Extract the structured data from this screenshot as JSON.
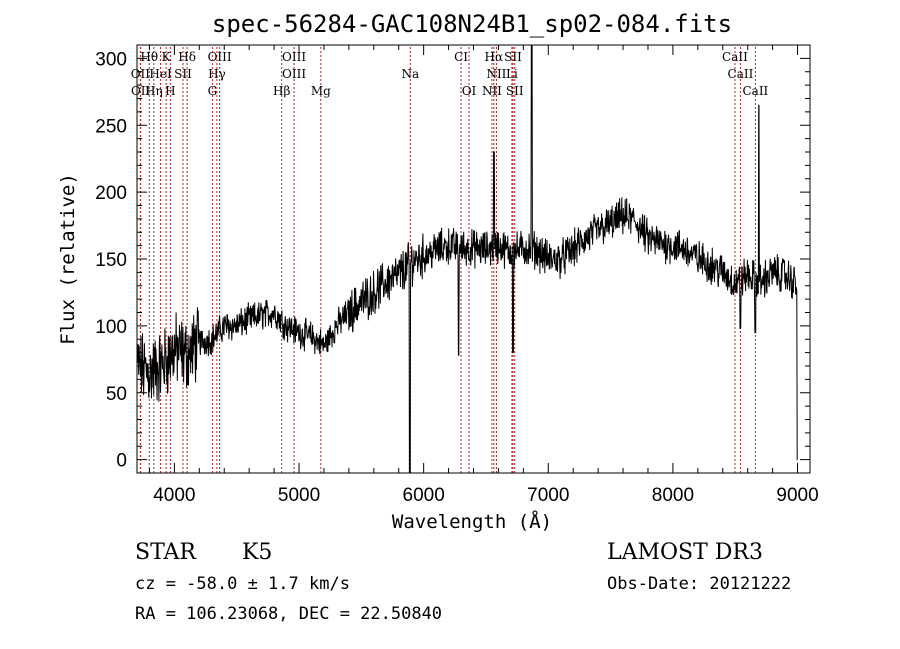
{
  "chart_data": {
    "type": "line",
    "title": "spec-56284-GAC108N24B1_sp02-084.fits",
    "xlabel": "Wavelength (Å)",
    "ylabel": "Flux (relative)",
    "xlim": [
      3700,
      9100
    ],
    "ylim": [
      -10,
      310
    ],
    "x_ticks": [
      4000,
      5000,
      6000,
      7000,
      8000,
      9000
    ],
    "y_ticks": [
      0,
      50,
      100,
      150,
      200,
      250,
      300
    ],
    "series": [
      {
        "name": "spectrum",
        "continuum": [
          [
            3700,
            70
          ],
          [
            3800,
            65
          ],
          [
            3900,
            70
          ],
          [
            4000,
            82
          ],
          [
            4100,
            78
          ],
          [
            4200,
            88
          ],
          [
            4300,
            90
          ],
          [
            4400,
            100
          ],
          [
            4500,
            100
          ],
          [
            4600,
            105
          ],
          [
            4700,
            108
          ],
          [
            4800,
            110
          ],
          [
            4900,
            100
          ],
          [
            5000,
            95
          ],
          [
            5100,
            92
          ],
          [
            5200,
            85
          ],
          [
            5300,
            100
          ],
          [
            5400,
            110
          ],
          [
            5500,
            118
          ],
          [
            5600,
            125
          ],
          [
            5700,
            133
          ],
          [
            5800,
            138
          ],
          [
            5900,
            148
          ],
          [
            6000,
            152
          ],
          [
            6100,
            157
          ],
          [
            6200,
            160
          ],
          [
            6300,
            158
          ],
          [
            6400,
            158
          ],
          [
            6500,
            157
          ],
          [
            6600,
            160
          ],
          [
            6700,
            155
          ],
          [
            6800,
            158
          ],
          [
            6900,
            157
          ],
          [
            7000,
            150
          ],
          [
            7100,
            150
          ],
          [
            7200,
            157
          ],
          [
            7300,
            165
          ],
          [
            7400,
            172
          ],
          [
            7500,
            176
          ],
          [
            7600,
            182
          ],
          [
            7700,
            178
          ],
          [
            7800,
            165
          ],
          [
            7900,
            162
          ],
          [
            8000,
            160
          ],
          [
            8100,
            157
          ],
          [
            8200,
            150
          ],
          [
            8300,
            146
          ],
          [
            8400,
            140
          ],
          [
            8500,
            132
          ],
          [
            8600,
            138
          ],
          [
            8700,
            132
          ],
          [
            8800,
            140
          ],
          [
            8900,
            138
          ],
          [
            9000,
            130
          ]
        ],
        "features": [
          {
            "wavelength": 5890,
            "flux": -10,
            "width": 6
          },
          {
            "wavelength": 6280,
            "flux": 78,
            "width": 5
          },
          {
            "wavelength": 6563,
            "flux": 230,
            "width": 6
          },
          {
            "wavelength": 6717,
            "flux": 80,
            "width": 4
          },
          {
            "wavelength": 6867,
            "flux": 310,
            "width": 6
          },
          {
            "wavelength": 8542,
            "flux": 98,
            "width": 6
          },
          {
            "wavelength": 8662,
            "flux": 95,
            "width": 6
          },
          {
            "wavelength": 8690,
            "flux": 265,
            "width": 4
          },
          {
            "wavelength": 9000,
            "flux": 0,
            "width": 8
          }
        ]
      }
    ],
    "spectral_lines": [
      {
        "label": "Hθ",
        "wavelength": 3798,
        "row": 0
      },
      {
        "label": "K",
        "wavelength": 3934,
        "row": 0
      },
      {
        "label": "Hδ",
        "wavelength": 4102,
        "row": 0
      },
      {
        "label": "OIII",
        "wavelength": 4363,
        "row": 0
      },
      {
        "label": "OIII",
        "wavelength": 4960,
        "row": 0
      },
      {
        "label": "CI",
        "wavelength": 6300,
        "row": 0
      },
      {
        "label": "Hα",
        "wavelength": 6563,
        "row": 0
      },
      {
        "label": "SII",
        "wavelength": 6717,
        "row": 0
      },
      {
        "label": "CaII",
        "wavelength": 8498,
        "row": 0
      },
      {
        "label": "OII",
        "wavelength": 3727,
        "row": 1
      },
      {
        "label": "HeI",
        "wavelength": 3889,
        "row": 1
      },
      {
        "label": "SII",
        "wavelength": 4069,
        "row": 1
      },
      {
        "label": "Hγ",
        "wavelength": 4341,
        "row": 1
      },
      {
        "label": "OIII",
        "wavelength": 4960,
        "row": 1
      },
      {
        "label": "Na",
        "wavelength": 5893,
        "row": 1
      },
      {
        "label": "NII",
        "wavelength": 6584,
        "row": 1
      },
      {
        "label": "Li",
        "wavelength": 6708,
        "row": 1
      },
      {
        "label": "CaII",
        "wavelength": 8542,
        "row": 1
      },
      {
        "label": "OII",
        "wavelength": 3729,
        "row": 2
      },
      {
        "label": "Hη",
        "wavelength": 3835,
        "row": 2
      },
      {
        "label": "H",
        "wavelength": 3968,
        "row": 2
      },
      {
        "label": "G",
        "wavelength": 4305,
        "row": 2
      },
      {
        "label": "Hβ",
        "wavelength": 4861,
        "row": 2
      },
      {
        "label": "Mg",
        "wavelength": 5175,
        "row": 2
      },
      {
        "label": "OI",
        "wavelength": 6364,
        "row": 2
      },
      {
        "label": "NII",
        "wavelength": 6548,
        "row": 2
      },
      {
        "label": "SII",
        "wavelength": 6731,
        "row": 2
      },
      {
        "label": "CaII",
        "wavelength": 8662,
        "row": 2
      }
    ],
    "line_color": "#b22222",
    "spectrum_color": "#000000"
  },
  "info": {
    "object_class": "STAR",
    "subclass": "K5",
    "redshift": "cz = -58.0 ± 1.7 km/s",
    "coords": "RA = 106.23068, DEC =  22.50840",
    "survey": "LAMOST DR3",
    "obs_date": "Obs-Date: 20121222"
  }
}
